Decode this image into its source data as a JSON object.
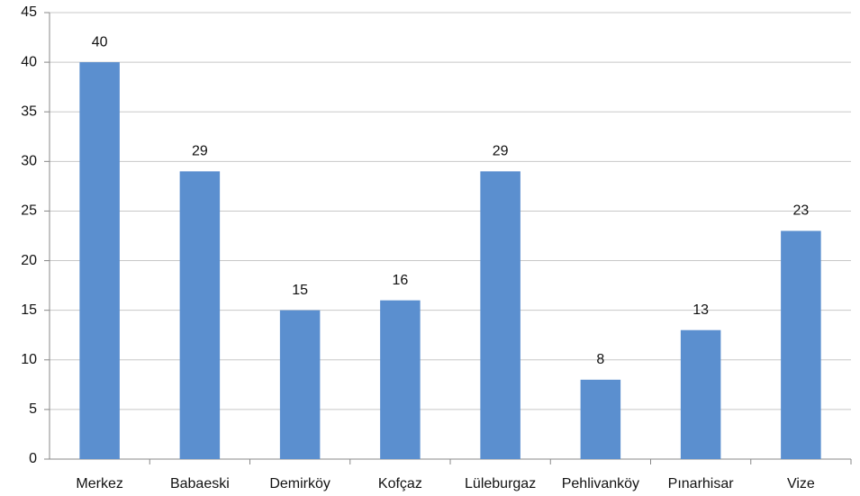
{
  "chart_data": {
    "type": "bar",
    "categories": [
      "Merkez",
      "Babaeski",
      "Demirköy",
      "Kofçaz",
      "Lüleburgaz",
      "Pehlivanköy",
      "Pınarhisar",
      "Vize"
    ],
    "values": [
      40,
      29,
      15,
      16,
      29,
      8,
      13,
      23
    ],
    "color": "#5b8fcf",
    "ylim": [
      0,
      45
    ],
    "yticks": [
      0,
      5,
      10,
      15,
      20,
      25,
      30,
      35,
      40,
      45
    ],
    "grid": true,
    "data_labels": true
  }
}
